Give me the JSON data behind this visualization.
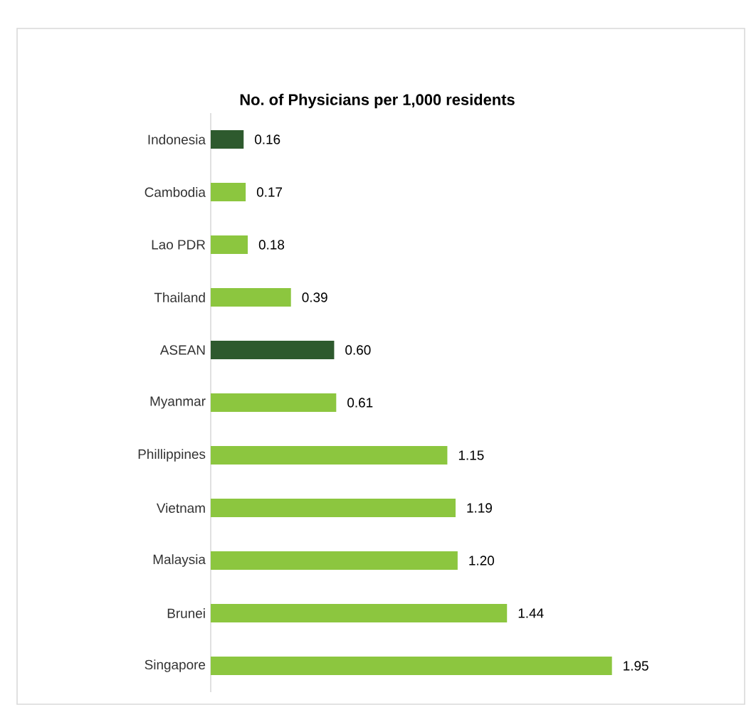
{
  "chart_data": {
    "type": "bar",
    "orientation": "horizontal",
    "title": "No. of Physicians per 1,000 residents",
    "categories": [
      "Indonesia",
      "Cambodia",
      "Lao PDR",
      "Thailand",
      "ASEAN",
      "Myanmar",
      "Phillippines",
      "Vietnam",
      "Malaysia",
      "Brunei",
      "Singapore"
    ],
    "values": [
      0.16,
      0.17,
      0.18,
      0.39,
      0.6,
      0.61,
      1.15,
      1.19,
      1.2,
      1.44,
      1.95
    ],
    "value_labels": [
      "0.16",
      "0.17",
      "0.18",
      "0.39",
      "0.60",
      "0.61",
      "1.15",
      "1.19",
      "1.20",
      "1.44",
      "1.95"
    ],
    "colors": [
      "#2e5a2e",
      "#8cc63f",
      "#8cc63f",
      "#8cc63f",
      "#2e5a2e",
      "#8cc63f",
      "#8cc63f",
      "#8cc63f",
      "#8cc63f",
      "#8cc63f",
      "#8cc63f"
    ],
    "data_labels": true
  }
}
